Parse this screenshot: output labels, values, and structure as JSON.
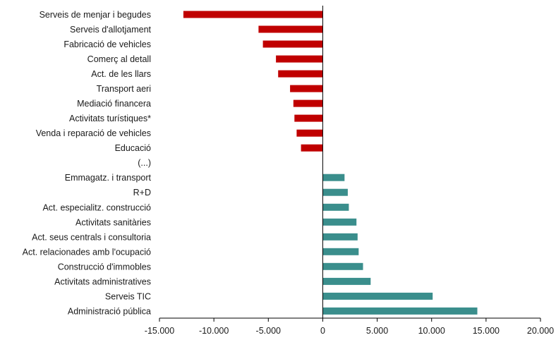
{
  "chart_data": {
    "type": "bar",
    "orientation": "horizontal",
    "title": "",
    "xlabel": "",
    "ylabel": "",
    "xlim": [
      -15000,
      20000
    ],
    "xticks": [
      -15000,
      -10000,
      -5000,
      0,
      5000,
      10000,
      15000,
      20000
    ],
    "xtick_labels": [
      "-15.000",
      "-10.000",
      "-5.000",
      "0",
      "5.000",
      "10.000",
      "15.000",
      "20.000"
    ],
    "grid": false,
    "legend": "none",
    "colors": {
      "negative": "#c00000",
      "positive": "#3a8e8c"
    },
    "categories": [
      "Serveis de menjar i begudes",
      "Serveis d'allotjament",
      "Fabricació de vehicles",
      "Comerç al detall",
      "Act. de les llars",
      "Transport aeri",
      "Mediació financera",
      "Activitats turístiques*",
      "Venda i reparació de vehicles",
      "Educació",
      "(...)",
      "Emmagatz. i transport",
      "R+D",
      "Act. especialitz. construcció",
      "Activitats sanitàries",
      "Act. seus centrals i consultoria",
      "Act. relacionades amb l'ocupació",
      "Construcció d'immobles",
      "Activitats administratives",
      "Serveis TIC",
      "Administració pública"
    ],
    "values": [
      -12800,
      -5900,
      -5500,
      -4300,
      -4100,
      -3000,
      -2700,
      -2600,
      -2400,
      -2000,
      null,
      2000,
      2300,
      2400,
      3100,
      3200,
      3300,
      3700,
      4400,
      10100,
      14200
    ]
  }
}
